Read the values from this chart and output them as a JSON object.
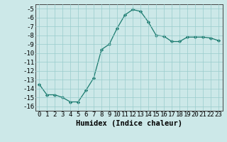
{
  "x": [
    0,
    1,
    2,
    3,
    4,
    5,
    6,
    7,
    8,
    9,
    10,
    11,
    12,
    13,
    14,
    15,
    16,
    17,
    18,
    19,
    20,
    21,
    22,
    23
  ],
  "y": [
    -13.5,
    -14.7,
    -14.7,
    -15.0,
    -15.5,
    -15.5,
    -14.2,
    -12.8,
    -9.6,
    -9.0,
    -7.2,
    -5.7,
    -5.1,
    -5.3,
    -6.5,
    -8.0,
    -8.1,
    -8.7,
    -8.7,
    -8.2,
    -8.2,
    -8.2,
    -8.3,
    -8.6
  ],
  "line_color": "#1a7a6e",
  "marker": "D",
  "marker_size": 2.2,
  "xlabel": "Humidex (Indice chaleur)",
  "bg_color": "#cce8e8",
  "grid_color": "#99cccc",
  "ylim": [
    -16.5,
    -4.5
  ],
  "xlim": [
    -0.5,
    23.5
  ],
  "yticks": [
    -5,
    -6,
    -7,
    -8,
    -9,
    -10,
    -11,
    -12,
    -13,
    -14,
    -15,
    -16
  ],
  "xticks": [
    0,
    1,
    2,
    3,
    4,
    5,
    6,
    7,
    8,
    9,
    10,
    11,
    12,
    13,
    14,
    15,
    16,
    17,
    18,
    19,
    20,
    21,
    22,
    23
  ],
  "tick_fontsize": 6.5,
  "xlabel_fontsize": 7.5
}
